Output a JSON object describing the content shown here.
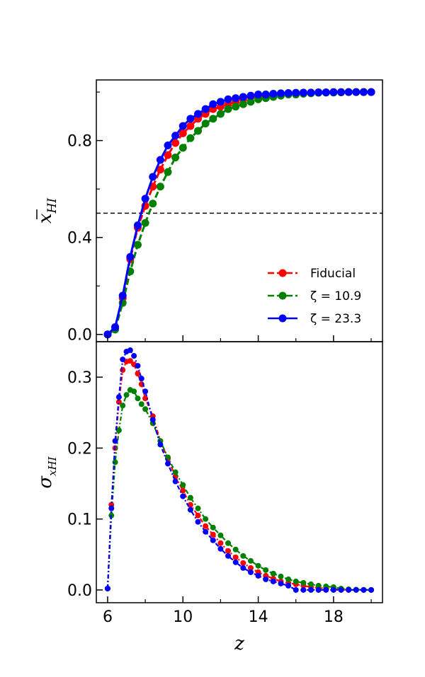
{
  "chart_data": [
    {
      "type": "line",
      "panel": "top",
      "ylabel": "x̄HI",
      "ylabel_main": "x",
      "ylabel_sub": "HI",
      "xlabel": "",
      "xlim": [
        5.4,
        20.6
      ],
      "ylim": [
        -0.03,
        1.05
      ],
      "yticks": [
        0.0,
        0.4,
        0.8
      ],
      "ytick_labels": [
        "0.0",
        "0.4",
        "0.8"
      ],
      "yticks_minor": [
        0.2,
        0.6,
        1.0
      ],
      "reference_line_y": 0.5,
      "x": [
        6.0,
        6.4,
        6.8,
        7.2,
        7.6,
        8.0,
        8.4,
        8.8,
        9.2,
        9.6,
        10.0,
        10.4,
        10.8,
        11.2,
        11.6,
        12.0,
        12.4,
        12.8,
        13.2,
        13.6,
        14.0,
        14.4,
        14.8,
        15.2,
        15.6,
        16.0,
        16.4,
        16.8,
        17.2,
        17.6,
        18.0,
        18.4,
        18.8,
        19.2,
        19.6,
        20.0
      ],
      "series": [
        {
          "name": "Fiducial",
          "color": "#ff0000",
          "values": [
            0.0,
            0.03,
            0.15,
            0.31,
            0.44,
            0.53,
            0.61,
            0.68,
            0.74,
            0.79,
            0.83,
            0.86,
            0.89,
            0.91,
            0.93,
            0.94,
            0.95,
            0.96,
            0.97,
            0.98,
            0.98,
            0.985,
            0.99,
            0.99,
            0.993,
            0.995,
            0.996,
            0.997,
            0.998,
            0.998,
            0.999,
            0.999,
            1.0,
            1.0,
            1.0,
            1.0
          ]
        },
        {
          "name": "ζ = 10.9",
          "color": "#008000",
          "values": [
            0.0,
            0.02,
            0.13,
            0.26,
            0.37,
            0.46,
            0.54,
            0.61,
            0.67,
            0.73,
            0.77,
            0.81,
            0.84,
            0.87,
            0.89,
            0.91,
            0.93,
            0.94,
            0.95,
            0.96,
            0.97,
            0.975,
            0.98,
            0.985,
            0.99,
            0.99,
            0.993,
            0.995,
            0.997,
            0.998,
            0.998,
            0.999,
            1.0,
            1.0,
            1.0,
            1.0
          ]
        },
        {
          "name": "ζ = 23.3",
          "color": "#0000ff",
          "values": [
            0.0,
            0.03,
            0.16,
            0.32,
            0.45,
            0.56,
            0.65,
            0.72,
            0.78,
            0.82,
            0.86,
            0.89,
            0.91,
            0.93,
            0.95,
            0.96,
            0.97,
            0.975,
            0.98,
            0.985,
            0.99,
            0.99,
            0.993,
            0.995,
            0.996,
            0.997,
            0.998,
            0.998,
            0.999,
            0.999,
            1.0,
            1.0,
            1.0,
            1.0,
            1.0,
            1.0
          ]
        }
      ],
      "legend": {
        "placement": "lower-right",
        "entries": [
          "Fiducial",
          "ζ = 10.9",
          "ζ = 23.3"
        ]
      }
    },
    {
      "type": "line",
      "panel": "bottom",
      "ylabel": "σxHI",
      "ylabel_main": "σ",
      "ylabel_sub": "xHI",
      "xlabel": "z",
      "xlim": [
        5.4,
        20.6
      ],
      "ylim": [
        -0.018,
        0.35
      ],
      "yticks": [
        0.0,
        0.1,
        0.2,
        0.3
      ],
      "ytick_labels": [
        "0.0",
        "0.1",
        "0.2",
        "0.3"
      ],
      "xticks": [
        6,
        10,
        14,
        18
      ],
      "xtick_labels": [
        "6",
        "10",
        "14",
        "18"
      ],
      "xticks_minor": [
        8,
        12,
        16,
        20
      ],
      "x": [
        6.0,
        6.2,
        6.4,
        6.6,
        6.8,
        7.0,
        7.2,
        7.4,
        7.6,
        7.8,
        8.0,
        8.4,
        8.8,
        9.2,
        9.6,
        10.0,
        10.4,
        10.8,
        11.2,
        11.6,
        12.0,
        12.4,
        12.8,
        13.2,
        13.6,
        14.0,
        14.4,
        14.8,
        15.2,
        15.6,
        16.0,
        16.4,
        16.8,
        17.2,
        17.6,
        18.0,
        18.4,
        18.8,
        19.2,
        19.6,
        20.0
      ],
      "series": [
        {
          "name": "Fiducial",
          "color": "#ff0000",
          "values": [
            0.002,
            0.12,
            0.2,
            0.265,
            0.31,
            0.322,
            0.323,
            0.318,
            0.305,
            0.29,
            0.27,
            0.245,
            0.21,
            0.185,
            0.16,
            0.14,
            0.12,
            0.105,
            0.09,
            0.078,
            0.066,
            0.055,
            0.046,
            0.038,
            0.031,
            0.025,
            0.02,
            0.016,
            0.012,
            0.01,
            0.008,
            0.006,
            0.004,
            0.003,
            0.002,
            0.001,
            0.0005,
            0.0002,
            0.0001,
            0.0,
            0.0
          ]
        },
        {
          "name": "ζ = 10.9",
          "color": "#008000",
          "values": [
            0.002,
            0.105,
            0.18,
            0.225,
            0.26,
            0.275,
            0.282,
            0.28,
            0.27,
            0.262,
            0.255,
            0.235,
            0.21,
            0.187,
            0.166,
            0.148,
            0.13,
            0.115,
            0.1,
            0.088,
            0.077,
            0.066,
            0.057,
            0.048,
            0.041,
            0.034,
            0.028,
            0.023,
            0.019,
            0.015,
            0.012,
            0.01,
            0.008,
            0.006,
            0.005,
            0.004,
            0.002,
            0.001,
            0.0005,
            0.0002,
            0.0
          ]
        },
        {
          "name": "ζ = 23.3",
          "color": "#0000ff",
          "values": [
            0.002,
            0.115,
            0.21,
            0.272,
            0.325,
            0.336,
            0.338,
            0.33,
            0.316,
            0.298,
            0.28,
            0.24,
            0.205,
            0.178,
            0.153,
            0.132,
            0.113,
            0.096,
            0.082,
            0.07,
            0.058,
            0.048,
            0.039,
            0.031,
            0.025,
            0.02,
            0.015,
            0.012,
            0.009,
            0.006,
            0.0,
            0.0,
            0.0,
            0.0,
            0.0,
            0.0,
            0.0,
            0.0,
            0.0,
            0.0,
            0.0
          ]
        }
      ]
    }
  ]
}
